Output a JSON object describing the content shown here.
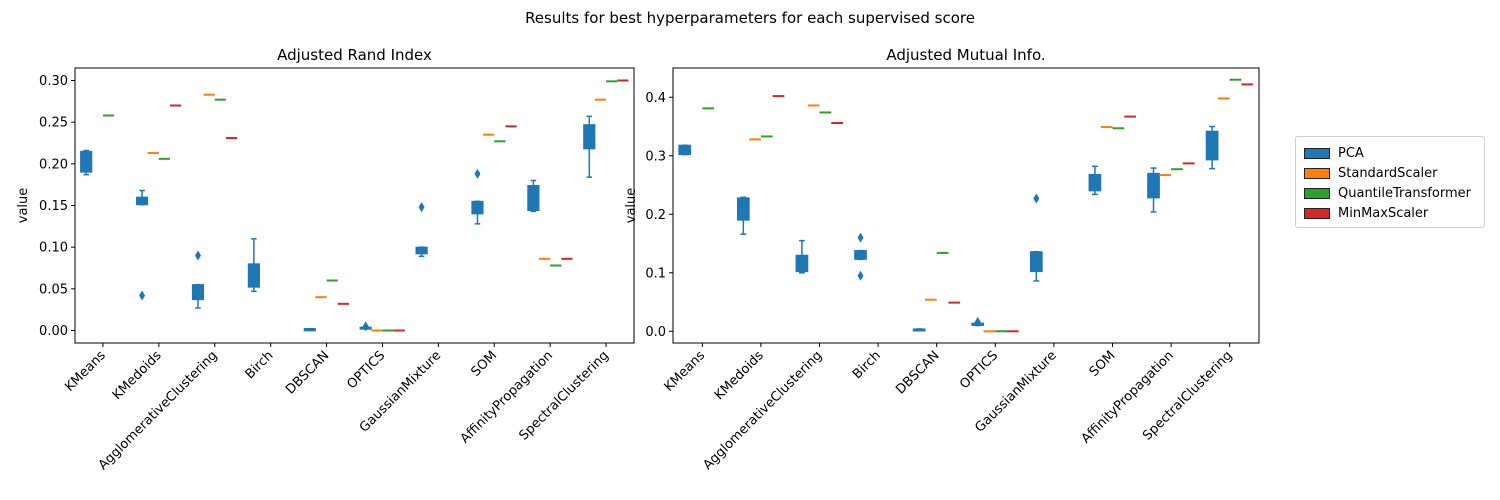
{
  "figure_title": "Results for best hyperparameters for each supervised score",
  "legend": {
    "entries": [
      {
        "label": "PCA",
        "color": "#1f77b4"
      },
      {
        "label": "StandardScaler",
        "color": "#ff7f0e"
      },
      {
        "label": "QuantileTransformer",
        "color": "#2ca02c"
      },
      {
        "label": "MinMaxScaler",
        "color": "#d62728"
      }
    ]
  },
  "chart_data": [
    {
      "type": "box",
      "title": "Adjusted Rand Index",
      "ylabel": "value",
      "xlabel": "",
      "ylim": [
        -0.015,
        0.315
      ],
      "yticks": [
        "0.00",
        "0.05",
        "0.10",
        "0.15",
        "0.20",
        "0.25",
        "0.30"
      ],
      "categories": [
        "KMeans",
        "KMedoids",
        "AgglomerativeClustering",
        "Birch",
        "DBSCAN",
        "OPTICS",
        "GaussianMixture",
        "SOM",
        "AffinityPropagation",
        "SpectralClustering"
      ],
      "series": [
        {
          "name": "PCA",
          "boxes": [
            {
              "q1": 0.19,
              "median": 0.2,
              "q3": 0.215,
              "whislo": 0.187,
              "whishi": 0.216,
              "fliers": []
            },
            {
              "q1": 0.151,
              "median": 0.155,
              "q3": 0.16,
              "whislo": 0.151,
              "whishi": 0.168,
              "fliers": [
                0.042
              ]
            },
            {
              "q1": 0.037,
              "median": 0.045,
              "q3": 0.055,
              "whislo": 0.027,
              "whishi": 0.055,
              "fliers": [
                0.09
              ]
            },
            {
              "q1": 0.052,
              "median": 0.06,
              "q3": 0.08,
              "whislo": 0.047,
              "whishi": 0.11,
              "fliers": []
            },
            {
              "q1": 0.002,
              "median": 0.002,
              "q3": 0.002,
              "whislo": 0.002,
              "whishi": 0.002,
              "fliers": []
            },
            {
              "q1": 0.002,
              "median": 0.003,
              "q3": 0.004,
              "whislo": 0.002,
              "whishi": 0.004,
              "fliers": [
                0.005
              ]
            },
            {
              "q1": 0.092,
              "median": 0.095,
              "q3": 0.1,
              "whislo": 0.089,
              "whishi": 0.1,
              "fliers": [
                0.148
              ]
            },
            {
              "q1": 0.14,
              "median": 0.148,
              "q3": 0.155,
              "whislo": 0.128,
              "whishi": 0.155,
              "fliers": [
                0.188
              ]
            },
            {
              "q1": 0.144,
              "median": 0.155,
              "q3": 0.174,
              "whislo": 0.143,
              "whishi": 0.18,
              "fliers": []
            },
            {
              "q1": 0.218,
              "median": 0.235,
              "q3": 0.247,
              "whislo": 0.184,
              "whishi": 0.257,
              "fliers": []
            }
          ]
        },
        {
          "name": "StandardScaler",
          "values": [
            null,
            0.213,
            0.283,
            null,
            0.04,
            0.0,
            null,
            0.235,
            0.086,
            0.277
          ]
        },
        {
          "name": "QuantileTransformer",
          "values": [
            0.258,
            0.206,
            0.277,
            null,
            0.06,
            0.0,
            null,
            0.227,
            0.078,
            0.299
          ]
        },
        {
          "name": "MinMaxScaler",
          "values": [
            null,
            0.27,
            0.231,
            null,
            0.032,
            0.0,
            null,
            0.245,
            0.086,
            0.3
          ]
        }
      ]
    },
    {
      "type": "box",
      "title": "Adjusted Mutual Info.",
      "ylabel": "value",
      "xlabel": "",
      "ylim": [
        -0.02,
        0.45
      ],
      "yticks": [
        "0.0",
        "0.1",
        "0.2",
        "0.3",
        "0.4"
      ],
      "categories": [
        "KMeans",
        "KMedoids",
        "AgglomerativeClustering",
        "Birch",
        "DBSCAN",
        "OPTICS",
        "GaussianMixture",
        "SOM",
        "AffinityPropagation",
        "SpectralClustering"
      ],
      "series": [
        {
          "name": "PCA",
          "boxes": [
            {
              "q1": 0.302,
              "median": 0.31,
              "q3": 0.318,
              "whislo": 0.302,
              "whishi": 0.318,
              "fliers": []
            },
            {
              "q1": 0.19,
              "median": 0.215,
              "q3": 0.228,
              "whislo": 0.166,
              "whishi": 0.229,
              "fliers": []
            },
            {
              "q1": 0.102,
              "median": 0.11,
              "q3": 0.13,
              "whislo": 0.1,
              "whishi": 0.155,
              "fliers": []
            },
            {
              "q1": 0.123,
              "median": 0.13,
              "q3": 0.138,
              "whislo": 0.123,
              "whishi": 0.138,
              "fliers": [
                0.16,
                0.095
              ]
            },
            {
              "q1": 0.002,
              "median": 0.003,
              "q3": 0.004,
              "whislo": 0.002,
              "whishi": 0.004,
              "fliers": []
            },
            {
              "q1": 0.01,
              "median": 0.012,
              "q3": 0.014,
              "whislo": 0.01,
              "whishi": 0.014,
              "fliers": [
                0.016
              ]
            },
            {
              "q1": 0.102,
              "median": 0.12,
              "q3": 0.136,
              "whislo": 0.086,
              "whishi": 0.136,
              "fliers": [
                0.227
              ]
            },
            {
              "q1": 0.24,
              "median": 0.255,
              "q3": 0.268,
              "whislo": 0.234,
              "whishi": 0.282,
              "fliers": []
            },
            {
              "q1": 0.228,
              "median": 0.255,
              "q3": 0.27,
              "whislo": 0.204,
              "whishi": 0.279,
              "fliers": []
            },
            {
              "q1": 0.293,
              "median": 0.325,
              "q3": 0.342,
              "whislo": 0.278,
              "whishi": 0.35,
              "fliers": []
            }
          ]
        },
        {
          "name": "StandardScaler",
          "values": [
            null,
            0.328,
            0.386,
            null,
            0.054,
            0.0,
            null,
            0.349,
            0.267,
            0.398
          ]
        },
        {
          "name": "QuantileTransformer",
          "values": [
            0.381,
            0.333,
            0.374,
            null,
            0.134,
            0.0,
            null,
            0.347,
            0.277,
            0.43
          ]
        },
        {
          "name": "MinMaxScaler",
          "values": [
            null,
            0.402,
            0.356,
            null,
            0.049,
            0.0,
            null,
            0.367,
            0.287,
            0.422
          ]
        }
      ]
    }
  ]
}
